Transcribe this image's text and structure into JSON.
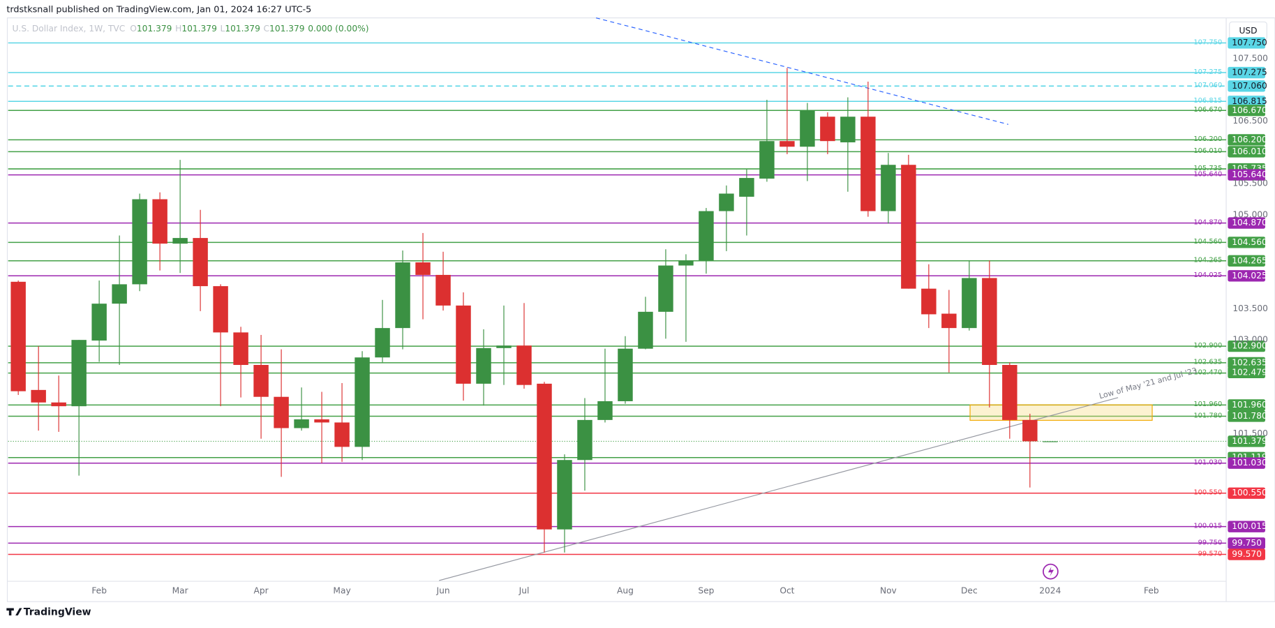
{
  "header": {
    "publisher": "trdstksnall published on TradingView.com, Jan 01, 2024 16:27 UTC-5",
    "footer": "TradingView",
    "currency_button": "USD"
  },
  "chart_data": {
    "type": "candlestick",
    "legend": {
      "symbol": "U.S. Dollar Index, 1W, TVC",
      "items": [
        {
          "key": "O",
          "value": "101.379"
        },
        {
          "key": "H",
          "value": "101.379"
        },
        {
          "key": "L",
          "value": "101.379"
        },
        {
          "key": "C",
          "value": "101.379"
        }
      ],
      "change": "0.000 (0.00%)"
    },
    "categories": [
      null,
      null,
      null,
      null,
      null,
      null,
      null,
      null,
      null,
      null,
      null,
      null,
      null,
      null,
      null,
      null,
      null,
      null,
      null,
      null,
      null,
      null,
      null,
      null,
      null,
      null,
      null,
      null,
      null,
      null,
      null,
      null,
      null,
      null,
      null,
      null,
      null,
      null,
      null,
      null,
      null,
      null,
      null,
      null,
      null,
      null,
      null,
      null,
      null,
      null,
      null,
      null
    ],
    "open": [
      103.93,
      102.2,
      102.0,
      101.94,
      102.99,
      103.58,
      103.89,
      105.25,
      104.54,
      104.63,
      103.86,
      103.12,
      102.6,
      102.09,
      101.59,
      101.73,
      101.68,
      101.29,
      102.72,
      103.19,
      104.24,
      104.04,
      103.55,
      102.3,
      102.87,
      102.91,
      102.3,
      99.97,
      101.08,
      101.72,
      102.02,
      102.86,
      103.45,
      104.19,
      104.27,
      105.06,
      105.29,
      105.58,
      106.18,
      106.09,
      106.57,
      106.16,
      106.57,
      105.06,
      105.8,
      103.82,
      103.42,
      103.19,
      103.99,
      102.6,
      101.72,
      101.379
    ],
    "high": [
      103.95,
      102.9,
      102.43,
      103.0,
      103.95,
      104.67,
      105.34,
      105.36,
      105.88,
      105.08,
      103.89,
      103.21,
      103.08,
      102.85,
      102.24,
      102.17,
      102.31,
      102.82,
      103.64,
      104.43,
      104.71,
      104.41,
      103.76,
      103.17,
      103.55,
      103.59,
      102.33,
      101.17,
      102.07,
      102.86,
      103.06,
      103.69,
      104.45,
      104.37,
      105.11,
      105.47,
      105.73,
      106.84,
      107.35,
      106.79,
      106.64,
      106.88,
      107.13,
      105.99,
      105.96,
      104.21,
      103.8,
      104.27,
      104.27,
      102.64,
      101.82,
      101.379
    ],
    "low": [
      102.12,
      101.55,
      101.53,
      100.83,
      102.65,
      102.6,
      103.78,
      104.11,
      104.07,
      103.46,
      101.94,
      102.08,
      101.42,
      100.81,
      101.55,
      101.03,
      101.05,
      101.08,
      102.64,
      102.85,
      103.33,
      103.47,
      102.03,
      101.95,
      102.28,
      102.22,
      99.6,
      99.6,
      100.59,
      101.68,
      101.98,
      102.85,
      103.02,
      102.97,
      104.06,
      104.42,
      104.67,
      105.53,
      105.97,
      105.54,
      105.97,
      105.37,
      104.97,
      104.86,
      103.82,
      103.19,
      102.48,
      103.15,
      101.92,
      101.42,
      100.64,
      101.379
    ],
    "close": [
      102.18,
      102.0,
      101.94,
      103.0,
      103.58,
      103.89,
      105.25,
      104.54,
      104.63,
      103.86,
      103.12,
      102.6,
      102.09,
      101.59,
      101.73,
      101.68,
      101.29,
      102.72,
      103.19,
      104.24,
      104.04,
      103.55,
      102.3,
      102.87,
      102.91,
      102.28,
      99.97,
      101.08,
      101.72,
      102.02,
      102.86,
      103.45,
      104.19,
      104.27,
      105.06,
      105.34,
      105.59,
      106.18,
      106.09,
      106.67,
      106.18,
      106.57,
      105.06,
      105.8,
      103.82,
      103.41,
      103.19,
      103.99,
      102.6,
      101.72,
      101.379,
      101.379
    ],
    "up_color": "#3b9143",
    "down_color": "#dc3030",
    "xlim": [
      -0.5,
      59.7
    ],
    "xticks": [
      {
        "value": 4,
        "label": "Feb"
      },
      {
        "value": 8,
        "label": "Mar"
      },
      {
        "value": 12,
        "label": "Apr"
      },
      {
        "value": 16,
        "label": "May"
      },
      {
        "value": 21,
        "label": "Jun"
      },
      {
        "value": 25,
        "label": "Jul"
      },
      {
        "value": 30,
        "label": "Aug"
      },
      {
        "value": 34,
        "label": "Sep"
      },
      {
        "value": 38,
        "label": "Oct"
      },
      {
        "value": 43,
        "label": "Nov"
      },
      {
        "value": 47,
        "label": "Dec"
      },
      {
        "value": 51,
        "label": "2024"
      },
      {
        "value": 56,
        "label": "Feb"
      }
    ],
    "ylim": [
      99.14,
      108.15
    ],
    "yticks": [
      {
        "value": 107.5,
        "label": "107.500"
      },
      {
        "value": 106.5,
        "label": "106.500"
      },
      {
        "value": 105.5,
        "label": "105.500"
      },
      {
        "value": 105,
        "label": "105.000"
      },
      {
        "value": 103.5,
        "label": "103.500"
      },
      {
        "value": 103,
        "label": "103.000"
      },
      {
        "value": 101.5,
        "label": "101.500"
      }
    ],
    "levels": [
      {
        "value": 107.75,
        "label": "107.750",
        "badge": "107.750",
        "color": "#5ad6e6",
        "style": "solid"
      },
      {
        "value": 107.275,
        "label": "107.275",
        "badge": "107.275",
        "color": "#5ad6e6",
        "style": "solid"
      },
      {
        "value": 107.06,
        "label": "107.060",
        "badge": "107.060",
        "color": "#5ad6e6",
        "style": "dashed"
      },
      {
        "value": 106.815,
        "label": "106.815",
        "badge": "106.815",
        "color": "#5ad6e6",
        "style": "solid"
      },
      {
        "value": 106.67,
        "label": "106.670",
        "badge": "106.670",
        "color": "#43a047",
        "style": "solid"
      },
      {
        "value": 106.2,
        "label": "106.200",
        "badge": "106.200",
        "color": "#43a047",
        "style": "solid"
      },
      {
        "value": 106.01,
        "label": "106.010",
        "badge": "106.010",
        "color": "#43a047",
        "style": "solid"
      },
      {
        "value": 105.735,
        "label": "105.735",
        "badge": "105.735",
        "color": "#43a047",
        "style": "solid"
      },
      {
        "value": 105.64,
        "label": "105.640",
        "badge": "105.640",
        "color": "#9c27b0",
        "style": "solid"
      },
      {
        "value": 104.87,
        "label": "104.870",
        "badge": "104.870",
        "color": "#9c27b0",
        "style": "solid"
      },
      {
        "value": 104.56,
        "label": "104.560",
        "badge": "104.560",
        "color": "#43a047",
        "style": "solid"
      },
      {
        "value": 104.265,
        "label": "104.265",
        "badge": "104.265",
        "color": "#43a047",
        "style": "solid"
      },
      {
        "value": 104.025,
        "label": "104.025",
        "badge": "104.025",
        "color": "#9c27b0",
        "style": "solid"
      },
      {
        "value": 102.9,
        "label": "102.900",
        "badge": "102.900",
        "color": "#43a047",
        "style": "solid"
      },
      {
        "value": 102.635,
        "label": "102.635",
        "badge": "102.635",
        "color": "#43a047",
        "style": "solid"
      },
      {
        "value": 102.47,
        "label": "102.470",
        "color": "#43a047",
        "style": "solid"
      },
      {
        "value": 102.479,
        "badge": "102.479",
        "color": "#43a047",
        "style": "none"
      },
      {
        "value": 101.96,
        "label": "101.960",
        "badge": "101.960",
        "color": "#43a047",
        "style": "solid"
      },
      {
        "value": 101.78,
        "label": "101.780",
        "badge": "101.780",
        "color": "#43a047",
        "style": "solid"
      },
      {
        "value": 101.379,
        "badge": "101.379",
        "color": "#43a047",
        "style": "dotted"
      },
      {
        "value": 101.119,
        "badge": "101.119",
        "color": "#43a047",
        "style": "solid"
      },
      {
        "value": 101.03,
        "label": "101.030",
        "badge": "101.030",
        "color": "#9c27b0",
        "style": "solid"
      },
      {
        "value": 100.55,
        "label": "100.550",
        "badge": "100.550",
        "color": "#f23645",
        "style": "solid"
      },
      {
        "value": 100.015,
        "label": "100.015",
        "badge": "100.015",
        "color": "#9c27b0",
        "style": "solid"
      },
      {
        "value": 99.75,
        "label": "99.750",
        "badge": "99.750",
        "color": "#9c27b0",
        "style": "solid"
      },
      {
        "value": 99.57,
        "label": "99.570",
        "badge": "99.570",
        "color": "#f23645",
        "style": "solid"
      }
    ],
    "annotation": "Low of May '21 and Jul '23"
  }
}
